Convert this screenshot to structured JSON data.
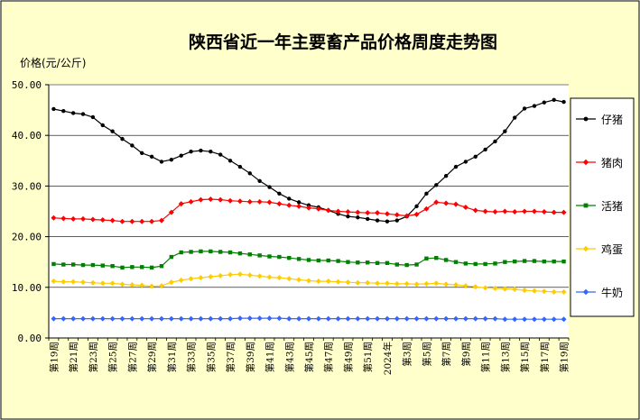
{
  "chart_data": {
    "type": "line",
    "title": "陕西省近一年主要畜产品价格周度走势图",
    "ylabel": "价格(元/公斤)",
    "xlabel": "",
    "ylim": [
      0,
      50
    ],
    "yticks": [
      "0.00",
      "10.00",
      "20.00",
      "30.00",
      "40.00",
      "50.00"
    ],
    "grid": "horizontal",
    "legend_position": "right",
    "colors": {
      "background": "#FFFFCC",
      "plot_area": "#FFFFFF",
      "legend_box": "#FFFFFF"
    },
    "categories": [
      "第19周",
      "第20周",
      "第21周",
      "第22周",
      "第23周",
      "第24周",
      "第25周",
      "第26周",
      "第27周",
      "第28周",
      "第29周",
      "第30周",
      "第31周",
      "第32周",
      "第33周",
      "第34周",
      "第35周",
      "第36周",
      "第37周",
      "第38周",
      "第39周",
      "第40周",
      "第41周",
      "第42周",
      "第43周",
      "第44周",
      "第45周",
      "第46周",
      "第47周",
      "第48周",
      "第49周",
      "第50周",
      "第51周",
      "第52周",
      "2024年",
      "第2周",
      "第3周",
      "第4周",
      "第5周",
      "第6周",
      "第7周",
      "第8周",
      "第9周",
      "第10周",
      "第11周",
      "第12周",
      "第13周",
      "第14周",
      "第15周",
      "第16周",
      "第17周",
      "第18周",
      "第19周"
    ],
    "x_tick_labels": [
      "第19周",
      "第21周",
      "第23周",
      "第25周",
      "第27周",
      "第29周",
      "第31周",
      "第33周",
      "第35周",
      "第37周",
      "第39周",
      "第41周",
      "第43周",
      "第45周",
      "第47周",
      "第49周",
      "第51周",
      "2024年",
      "第3周",
      "第5周",
      "第7周",
      "第9周",
      "第11周",
      "第13周",
      "第15周",
      "第17周",
      "第19周"
    ],
    "series": [
      {
        "name": "仔猪",
        "color": "#000000",
        "marker": "circle",
        "values": [
          45.2,
          44.8,
          44.4,
          44.2,
          43.6,
          42.0,
          40.8,
          39.3,
          38.0,
          36.5,
          35.8,
          34.8,
          35.2,
          36.0,
          36.8,
          37.0,
          36.8,
          36.2,
          35.0,
          33.8,
          32.5,
          31.0,
          29.8,
          28.5,
          27.5,
          26.8,
          26.2,
          25.8,
          25.2,
          24.5,
          24.0,
          23.8,
          23.5,
          23.2,
          23.0,
          23.2,
          24.0,
          26.0,
          28.5,
          30.2,
          32.0,
          33.8,
          34.8,
          35.8,
          37.2,
          38.8,
          40.8,
          43.5,
          45.3,
          45.8,
          46.5,
          47.0,
          46.6
        ]
      },
      {
        "name": "猪肉",
        "color": "#FF0000",
        "marker": "diamond",
        "values": [
          23.7,
          23.6,
          23.5,
          23.5,
          23.4,
          23.3,
          23.2,
          23.0,
          23.0,
          23.0,
          23.0,
          23.2,
          24.8,
          26.5,
          26.9,
          27.3,
          27.4,
          27.3,
          27.1,
          27.0,
          26.9,
          26.9,
          26.8,
          26.5,
          26.2,
          26.0,
          25.7,
          25.5,
          25.2,
          25.0,
          24.9,
          24.8,
          24.7,
          24.7,
          24.5,
          24.3,
          24.1,
          24.4,
          25.5,
          26.8,
          26.6,
          26.4,
          25.8,
          25.2,
          25.0,
          24.9,
          25.0,
          24.9,
          25.0,
          25.0,
          24.9,
          24.8,
          24.8
        ]
      },
      {
        "name": "活猪",
        "color": "#008000",
        "marker": "square",
        "values": [
          14.6,
          14.5,
          14.5,
          14.4,
          14.4,
          14.3,
          14.2,
          13.9,
          14.0,
          14.0,
          13.9,
          14.2,
          16.0,
          16.9,
          17.0,
          17.1,
          17.1,
          17.0,
          16.9,
          16.7,
          16.5,
          16.3,
          16.1,
          16.0,
          15.8,
          15.6,
          15.4,
          15.3,
          15.3,
          15.2,
          15.0,
          14.9,
          14.9,
          14.8,
          14.8,
          14.5,
          14.4,
          14.5,
          15.7,
          15.8,
          15.4,
          15.0,
          14.7,
          14.6,
          14.6,
          14.7,
          15.0,
          15.1,
          15.2,
          15.2,
          15.1,
          15.1,
          15.1
        ]
      },
      {
        "name": "鸡蛋",
        "color": "#FFCC00",
        "marker": "diamond",
        "values": [
          11.2,
          11.1,
          11.1,
          11.0,
          10.9,
          10.8,
          10.8,
          10.6,
          10.5,
          10.4,
          10.2,
          10.3,
          11.0,
          11.4,
          11.7,
          11.9,
          12.1,
          12.3,
          12.5,
          12.6,
          12.4,
          12.2,
          12.0,
          11.9,
          11.7,
          11.5,
          11.3,
          11.2,
          11.2,
          11.1,
          11.0,
          10.9,
          10.9,
          10.8,
          10.8,
          10.7,
          10.7,
          10.6,
          10.7,
          10.8,
          10.6,
          10.5,
          10.3,
          10.1,
          9.9,
          9.8,
          9.7,
          9.6,
          9.4,
          9.3,
          9.2,
          9.1,
          9.1
        ]
      },
      {
        "name": "牛奶",
        "color": "#3366FF",
        "marker": "diamond",
        "values": [
          3.8,
          3.8,
          3.8,
          3.8,
          3.8,
          3.8,
          3.8,
          3.8,
          3.8,
          3.8,
          3.8,
          3.8,
          3.8,
          3.8,
          3.8,
          3.8,
          3.8,
          3.8,
          3.8,
          3.9,
          3.9,
          3.9,
          3.9,
          3.9,
          3.8,
          3.8,
          3.8,
          3.8,
          3.8,
          3.8,
          3.8,
          3.8,
          3.8,
          3.8,
          3.8,
          3.8,
          3.8,
          3.8,
          3.8,
          3.8,
          3.8,
          3.8,
          3.8,
          3.8,
          3.8,
          3.8,
          3.7,
          3.7,
          3.7,
          3.7,
          3.7,
          3.7,
          3.7
        ]
      }
    ]
  }
}
